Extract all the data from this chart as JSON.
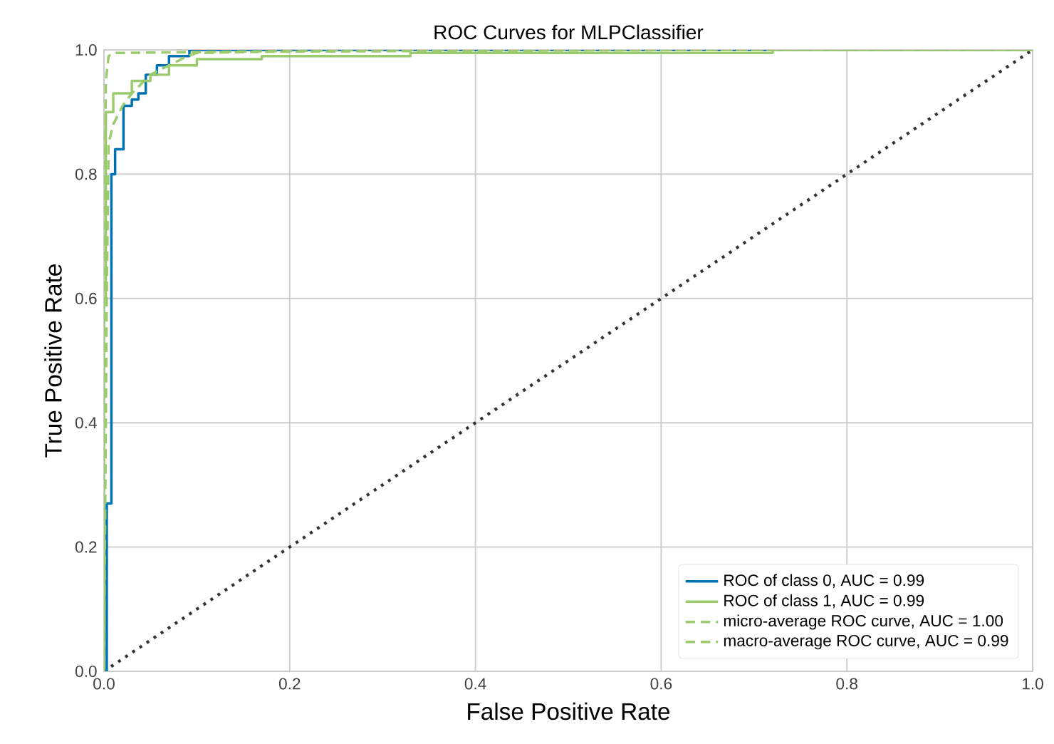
{
  "chart_data": {
    "type": "line",
    "title": "ROC Curves for MLPClassifier",
    "xlabel": "False Positive Rate",
    "ylabel": "True Positive Rate",
    "xlim": [
      0,
      1
    ],
    "ylim": [
      0,
      1
    ],
    "xticks": [
      {
        "value": 0,
        "label": "0.0"
      },
      {
        "value": 0.2,
        "label": "0.2"
      },
      {
        "value": 0.4,
        "label": "0.4"
      },
      {
        "value": 0.6,
        "label": "0.6"
      },
      {
        "value": 0.8,
        "label": "0.8"
      },
      {
        "value": 1,
        "label": "1.0"
      }
    ],
    "yticks": [
      {
        "value": 0,
        "label": "0.0"
      },
      {
        "value": 0.2,
        "label": "0.2"
      },
      {
        "value": 0.4,
        "label": "0.4"
      },
      {
        "value": 0.6,
        "label": "0.6"
      },
      {
        "value": 0.8,
        "label": "0.8"
      },
      {
        "value": 1,
        "label": "1.0"
      }
    ],
    "grid": true,
    "legend": "bottom right",
    "series": [
      {
        "name": "ROC of class 0, AUC = 0.99",
        "color": "#0072b2",
        "line_style": "solid",
        "x": [
          0,
          0.003,
          0.003,
          0.008,
          0.008,
          0.012,
          0.012,
          0.021,
          0.021,
          0.03,
          0.03,
          0.037,
          0.037,
          0.045,
          0.045,
          0.057,
          0.057,
          0.07,
          0.07,
          0.092,
          0.092,
          1
        ],
        "values": [
          0,
          0,
          0.27,
          0.27,
          0.8,
          0.8,
          0.84,
          0.84,
          0.91,
          0.91,
          0.92,
          0.92,
          0.93,
          0.93,
          0.96,
          0.96,
          0.975,
          0.975,
          0.99,
          0.99,
          1,
          1
        ]
      },
      {
        "name": "ROC of class 1, AUC = 0.99",
        "color": "#9ccb6e",
        "line_style": "solid",
        "x": [
          0,
          0,
          0.002,
          0.002,
          0.01,
          0.01,
          0.03,
          0.03,
          0.05,
          0.05,
          0.07,
          0.07,
          0.1,
          0.1,
          0.17,
          0.17,
          0.33,
          0.33,
          0.72,
          0.72,
          1
        ],
        "values": [
          0,
          0.6,
          0.6,
          0.9,
          0.9,
          0.93,
          0.93,
          0.95,
          0.95,
          0.96,
          0.96,
          0.975,
          0.975,
          0.985,
          0.985,
          0.99,
          0.99,
          0.995,
          0.995,
          1,
          1
        ]
      },
      {
        "name": "micro-average ROC curve, AUC = 1.00",
        "color": "#9ccb6e",
        "line_style": "dashed",
        "x": [
          0,
          0,
          0.002,
          0.005,
          0.01,
          0.3,
          1
        ],
        "values": [
          0,
          0.6,
          0.95,
          0.99,
          0.995,
          1,
          1
        ]
      },
      {
        "name": "macro-average ROC curve, AUC = 0.99",
        "color": "#9ccb6e",
        "line_style": "dashed",
        "x": [
          0,
          0.003,
          0.005,
          0.01,
          0.02,
          0.03,
          0.05,
          0.07,
          0.09,
          0.1,
          0.17,
          0.33,
          0.73,
          1
        ],
        "values": [
          0,
          0.6,
          0.85,
          0.88,
          0.91,
          0.93,
          0.96,
          0.975,
          0.99,
          0.995,
          0.997,
          0.998,
          1,
          1
        ]
      },
      {
        "color": "#333333",
        "line_style": "dotted",
        "x": [
          0,
          1
        ],
        "values": [
          0,
          1
        ]
      }
    ]
  }
}
